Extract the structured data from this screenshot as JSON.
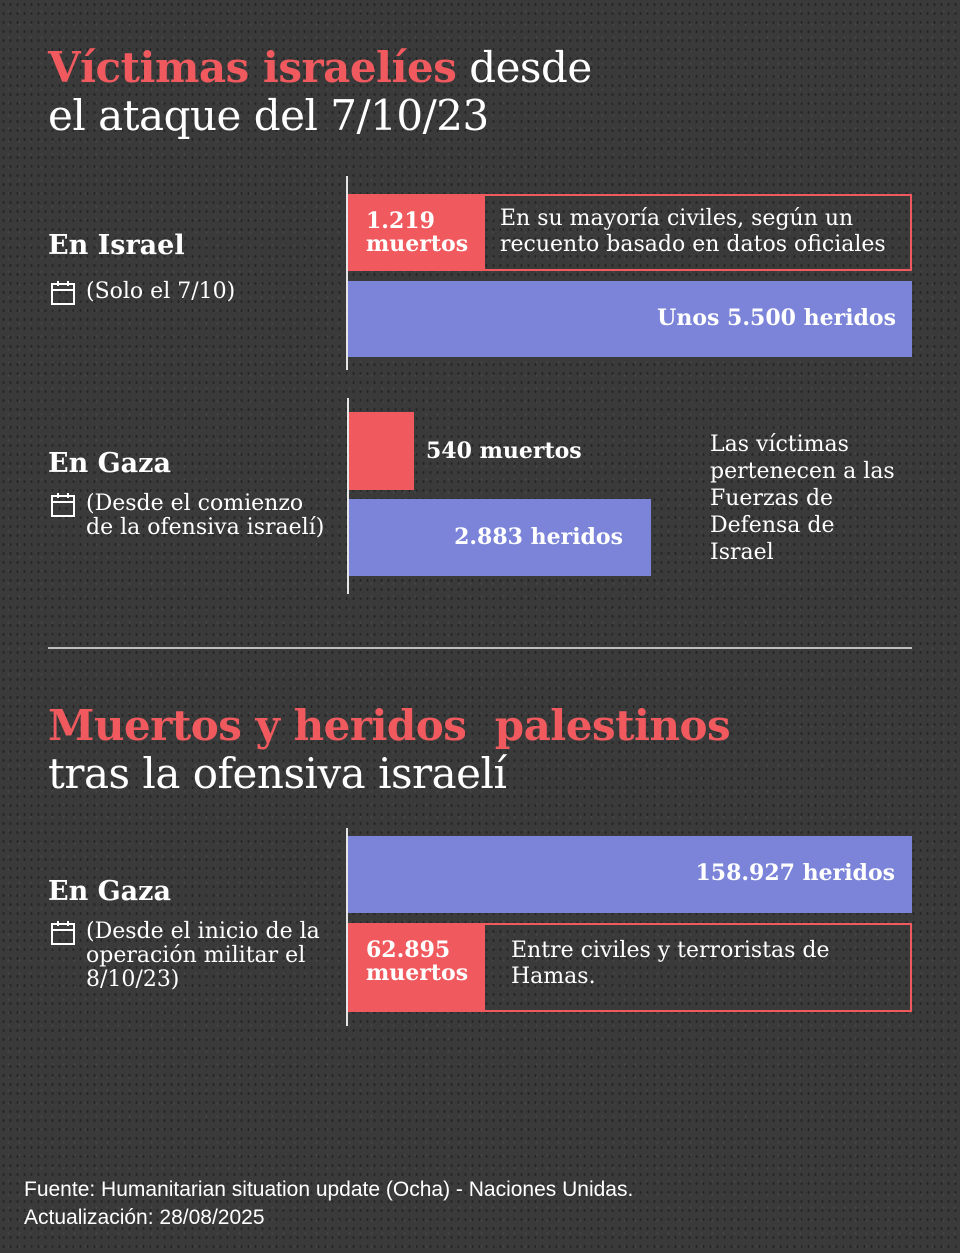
{
  "section1": {
    "title_highlight": "Víctimas israelíes",
    "title_rest_line1": " desde",
    "title_line2": "el ataque del 7/10/23",
    "israel": {
      "label": "En Israel",
      "note": "(Solo el 7/10)",
      "deaths_label": "1.219 muertos",
      "deaths_note": "En su mayoría civiles, según un recuento basado en datos oficiales",
      "injured_label": "Unos 5.500 heridos"
    },
    "gaza": {
      "label": "En Gaza",
      "note": "(Desde el comienzo de la ofensiva israelí)",
      "deaths_label": "540 muertos",
      "injured_label": "2.883 heridos",
      "side_note": "Las víctimas pertenecen a las Fuerzas de Defensa de Israel"
    }
  },
  "section2": {
    "title_highlight": "Muertos y heridos  palestinos",
    "title_line2": "tras la ofensiva israelí",
    "gaza": {
      "label": "En Gaza",
      "note": "(Desde el inicio de la operación militar el 8/10/23)",
      "injured_label": "158.927 heridos",
      "deaths_label": "62.895 muertos",
      "deaths_note": "Entre civiles y terroristas de Hamas."
    }
  },
  "footer": {
    "source": "Fuente: Humanitarian situation update (Ocha) - Naciones Unidas.",
    "updated": "Actualización: 28/08/2025"
  },
  "colors": {
    "deaths": "#f05a5e",
    "injured": "#7b84d8",
    "background": "#3a3a3b"
  },
  "chart_data": [
    {
      "type": "bar",
      "orientation": "horizontal",
      "group": "En Israel",
      "categories": [
        "muertos",
        "heridos"
      ],
      "values": [
        1219,
        5500
      ]
    },
    {
      "type": "bar",
      "orientation": "horizontal",
      "group": "En Gaza (israelíes)",
      "categories": [
        "muertos",
        "heridos"
      ],
      "values": [
        540,
        2883
      ]
    },
    {
      "type": "bar",
      "orientation": "horizontal",
      "group": "En Gaza (palestinos)",
      "categories": [
        "heridos",
        "muertos"
      ],
      "values": [
        158927,
        62895
      ]
    }
  ]
}
